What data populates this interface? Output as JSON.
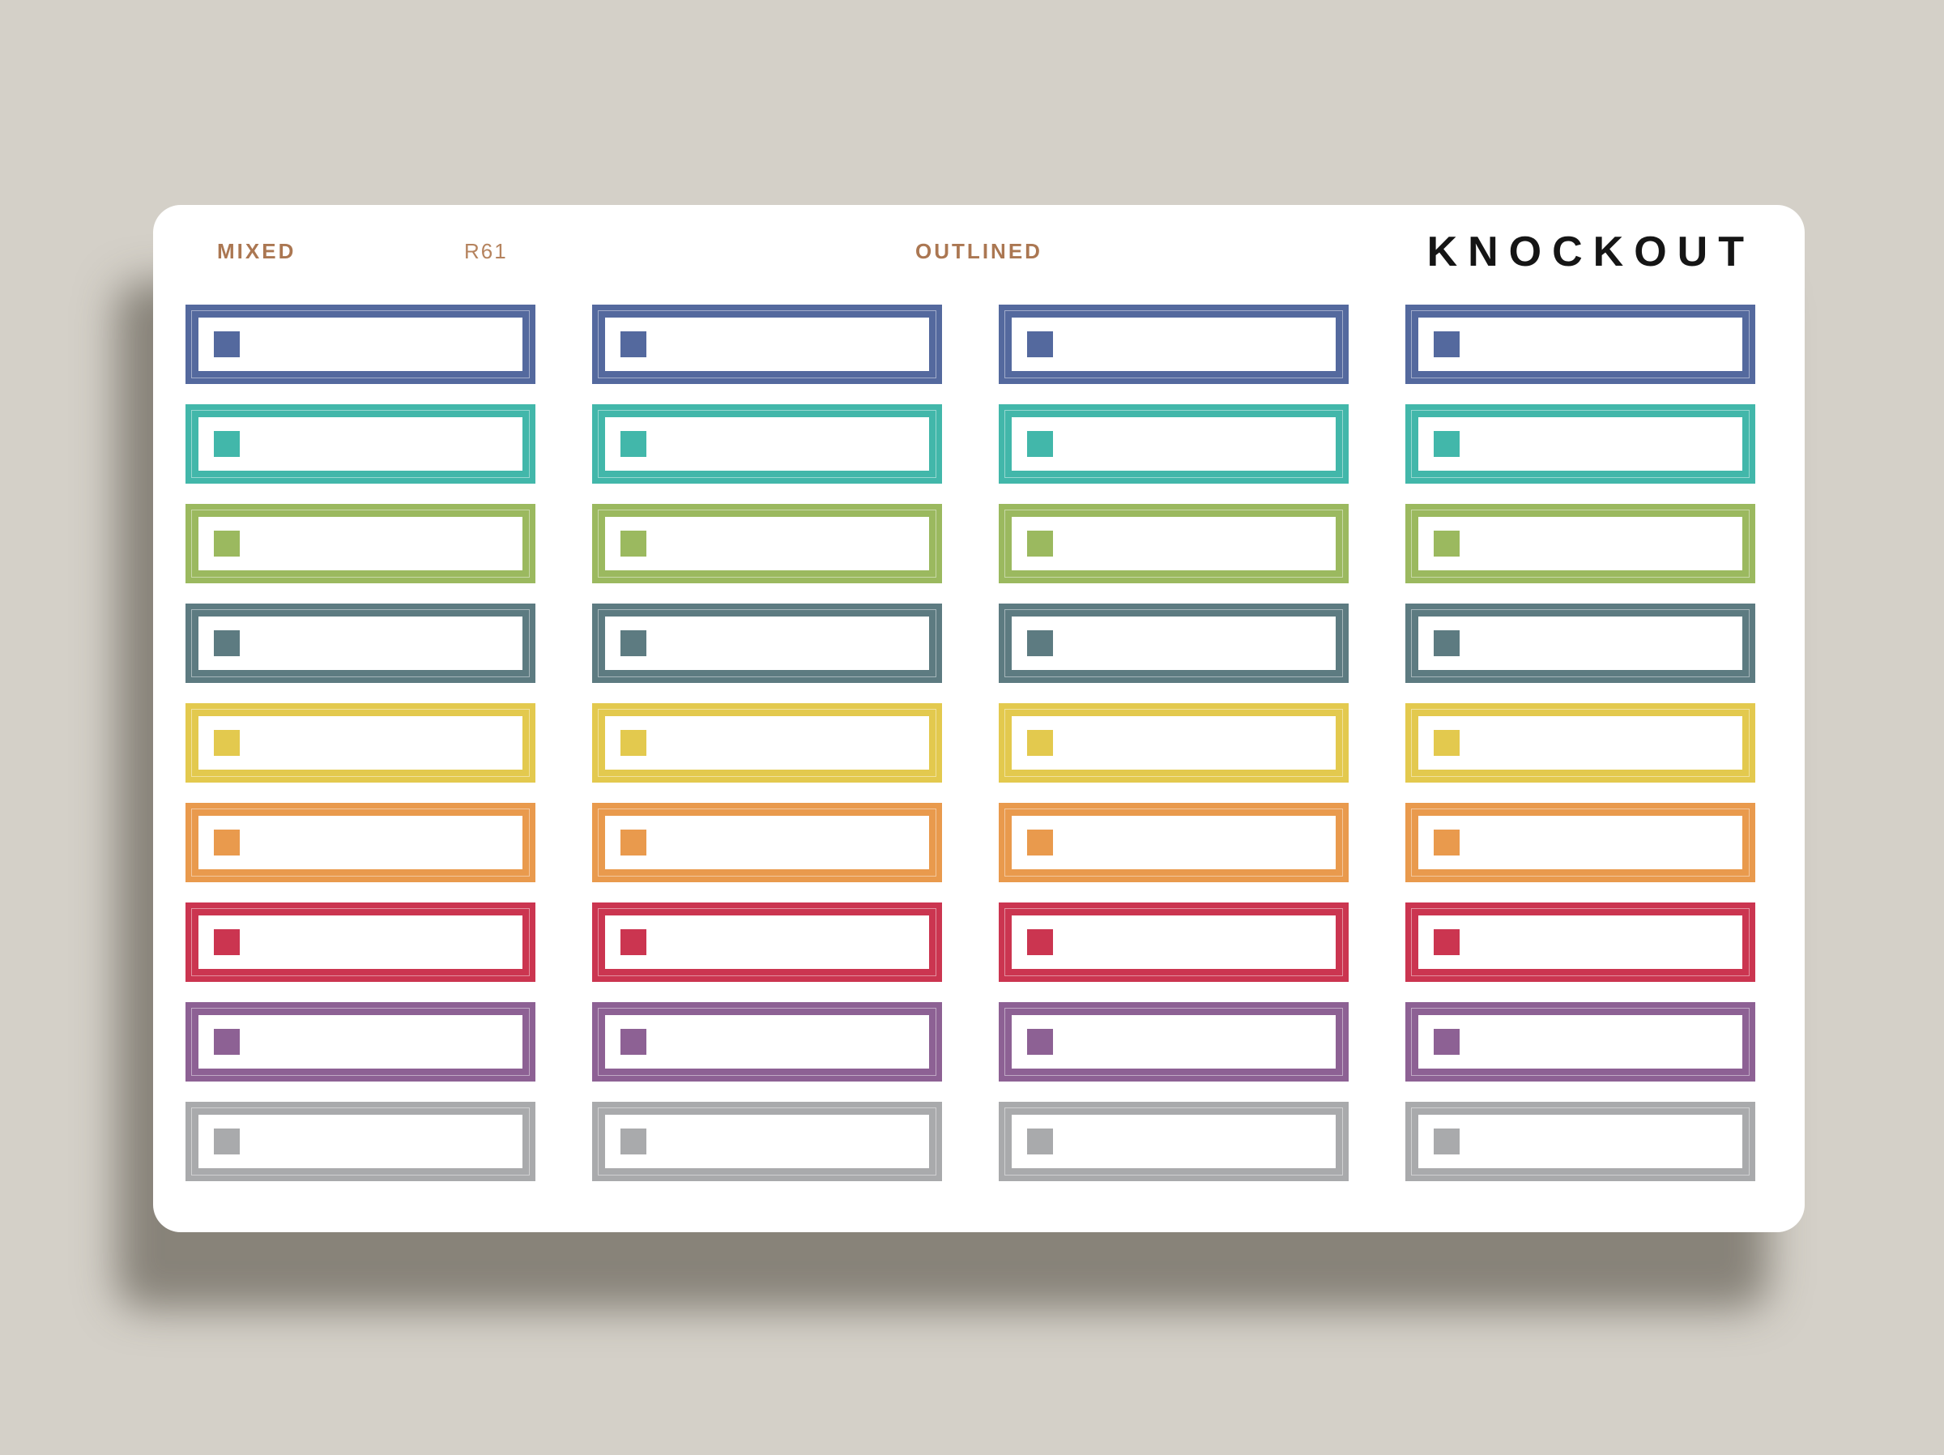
{
  "header": {
    "material_label": "MIXED",
    "sku": "R61",
    "style_label": "OUTLINED",
    "brand": "KNOCKOUT"
  },
  "sheet": {
    "background_color": "#d4d0c8",
    "card_color": "#ffffff",
    "columns": 4,
    "rows": 9,
    "row_colors": [
      {
        "name": "blue",
        "hex": "#54699e"
      },
      {
        "name": "teal",
        "hex": "#42b7aa"
      },
      {
        "name": "green",
        "hex": "#9bb95f"
      },
      {
        "name": "slate",
        "hex": "#5d7b81"
      },
      {
        "name": "yellow",
        "hex": "#e3c94e"
      },
      {
        "name": "orange",
        "hex": "#e99a4d"
      },
      {
        "name": "red",
        "hex": "#cb3550"
      },
      {
        "name": "purple",
        "hex": "#8d6194"
      },
      {
        "name": "gray",
        "hex": "#a9aaac"
      }
    ]
  }
}
